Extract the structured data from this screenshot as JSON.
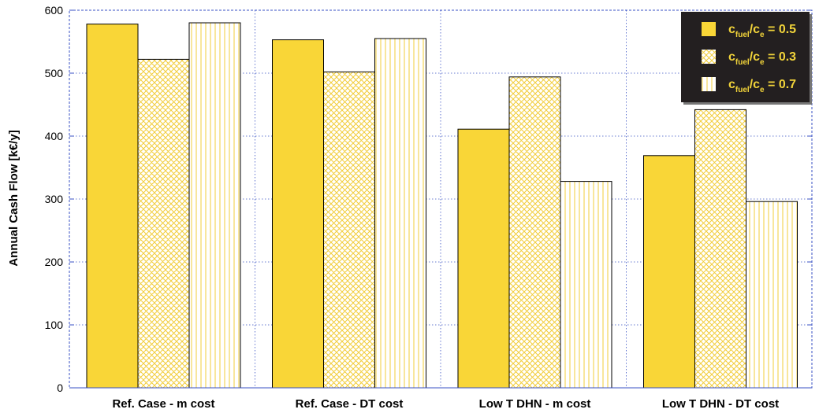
{
  "chart_data": {
    "type": "bar",
    "ylabel": "Annual Cash Flow [k€/y]",
    "xlabel": "",
    "ylim": [
      0,
      600
    ],
    "yticks": [
      0,
      100,
      200,
      300,
      400,
      500,
      600
    ],
    "grid": true,
    "legend_position": "top-right",
    "categories": [
      "Ref. Case - m cost",
      "Ref. Case - DT cost",
      "Low T DHN - m cost",
      "Low T DHN - DT cost"
    ],
    "series": [
      {
        "name": "cfuel/ce = 0.5",
        "legend": {
          "c1": "c",
          "s1": "fuel",
          "c2": "/c",
          "s2": "e",
          "rest": " = 0.5"
        },
        "pattern": "solid",
        "values": [
          578,
          553,
          411,
          369
        ]
      },
      {
        "name": "cfuel/ce = 0.3",
        "legend": {
          "c1": "c",
          "s1": "fuel",
          "c2": "/c",
          "s2": "e",
          "rest": " = 0.3"
        },
        "pattern": "crosshatch",
        "values": [
          522,
          502,
          494,
          442
        ]
      },
      {
        "name": "cfuel/ce = 0.7",
        "legend": {
          "c1": "c",
          "s1": "fuel",
          "c2": "/c",
          "s2": "e",
          "rest": " = 0.7"
        },
        "pattern": "vertical-lines",
        "values": [
          580,
          555,
          328,
          296
        ]
      }
    ],
    "colors": {
      "bar_fill": "#f9d637",
      "bar_stroke": "#000000",
      "hatch_line": "#f2cd3a",
      "grid": "#3a52c4",
      "legend_bg": "#231f20",
      "legend_text": "#f2d43a"
    }
  }
}
